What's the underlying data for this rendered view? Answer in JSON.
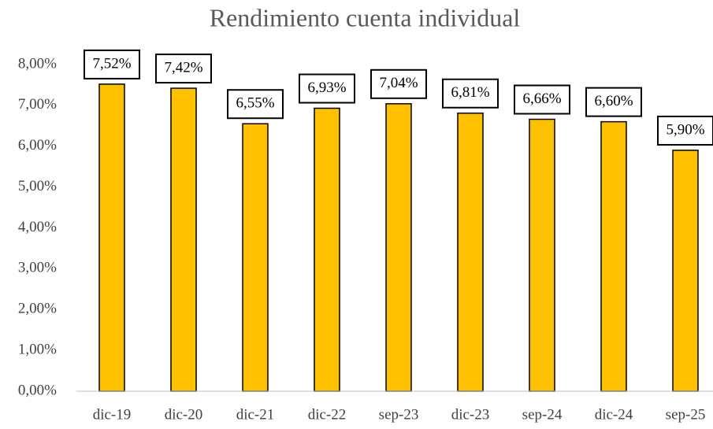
{
  "chart_data": {
    "type": "bar",
    "title": "Rendimiento cuenta individual",
    "categories": [
      "dic-19",
      "dic-20",
      "dic-21",
      "dic-22",
      "sep-23",
      "dic-23",
      "sep-24",
      "dic-24",
      "sep-25"
    ],
    "values": [
      7.52,
      7.42,
      6.55,
      6.93,
      7.04,
      6.81,
      6.66,
      6.6,
      5.9
    ],
    "value_labels": [
      "7,52%",
      "7,42%",
      "6,55%",
      "6,93%",
      "7,04%",
      "6,81%",
      "6,66%",
      "6,60%",
      "5,90%"
    ],
    "color": "#FFC000",
    "ylim": [
      0,
      8
    ],
    "yticks": [
      {
        "value": 0,
        "label": "0,00%"
      },
      {
        "value": 1,
        "label": "1,00%"
      },
      {
        "value": 2,
        "label": "2,00%"
      },
      {
        "value": 3,
        "label": "3,00%"
      },
      {
        "value": 4,
        "label": "4,00%"
      },
      {
        "value": 5,
        "label": "5,00%"
      },
      {
        "value": 6,
        "label": "6,00%"
      },
      {
        "value": 7,
        "label": "7,00%"
      },
      {
        "value": 8,
        "label": "8,00%"
      }
    ],
    "grid": false
  }
}
